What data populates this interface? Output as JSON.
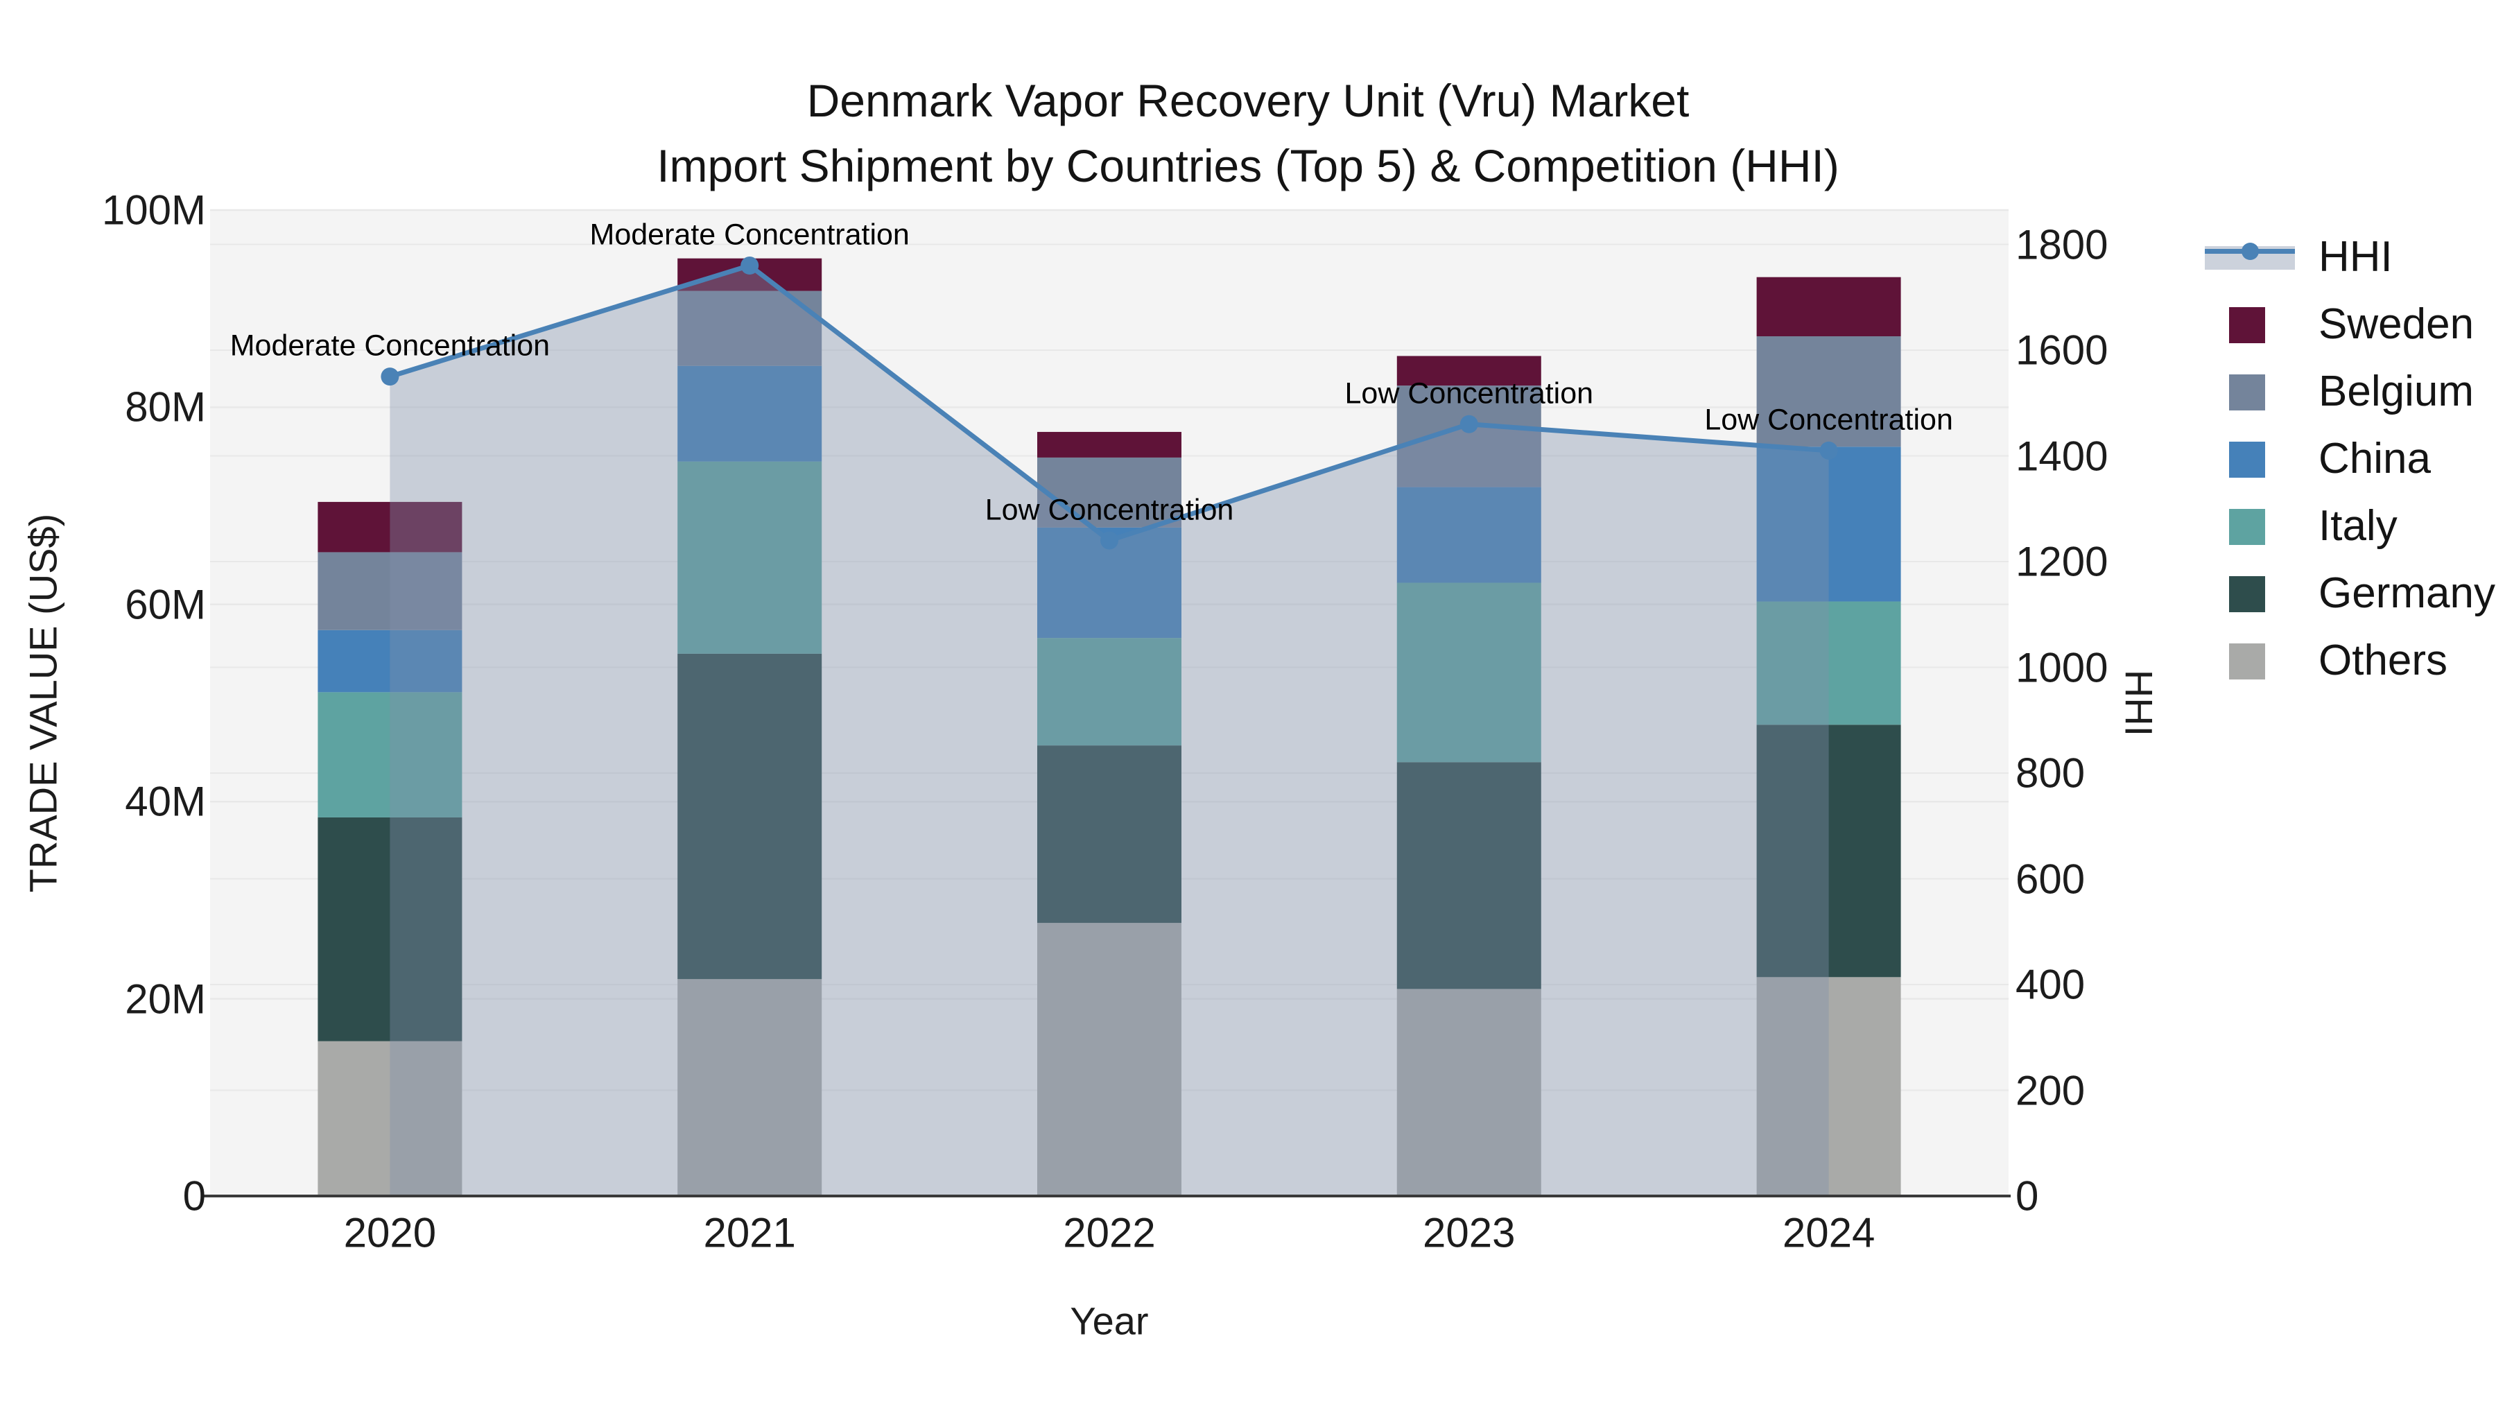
{
  "title": {
    "line1": "Denmark Vapor Recovery Unit (Vru) Market",
    "line2": "Import Shipment by Countries (Top 5) & Competition (HHI)"
  },
  "axes": {
    "x": {
      "title": "Year",
      "ticks": [
        "2020",
        "2021",
        "2022",
        "2023",
        "2024"
      ]
    },
    "y_left": {
      "title": "TRADE VALUE (US$)",
      "unit": "millions US$",
      "ticks": [
        "0",
        "20M",
        "40M",
        "60M",
        "80M",
        "100M"
      ],
      "range_millions": [
        0,
        100
      ]
    },
    "y_right": {
      "title": "HHI",
      "ticks": [
        "0",
        "200",
        "400",
        "600",
        "800",
        "1000",
        "1200",
        "1400",
        "1600",
        "1800"
      ]
    }
  },
  "legend": [
    {
      "label": "HHI",
      "type": "line",
      "color": "#4a82b6"
    },
    {
      "label": "Sweden",
      "type": "swatch",
      "color": "#5f1338"
    },
    {
      "label": "Belgium",
      "type": "swatch",
      "color": "#74849b"
    },
    {
      "label": "China",
      "type": "swatch",
      "color": "#4581b9"
    },
    {
      "label": "Italy",
      "type": "swatch",
      "color": "#5ea3a1"
    },
    {
      "label": "Germany",
      "type": "swatch",
      "color": "#2e4d4c"
    },
    {
      "label": "Others",
      "type": "swatch",
      "color": "#a9aaa8"
    }
  ],
  "chart_data": {
    "type": "bar+line",
    "title": "Denmark Vapor Recovery Unit (Vru) Market Import Shipment by Countries (Top 5) & Competition (HHI)",
    "xlabel": "Year",
    "ylabel_left": "TRADE VALUE (US$)",
    "ylabel_right": "HHI",
    "categories": [
      "2020",
      "2021",
      "2022",
      "2023",
      "2024"
    ],
    "stack_order_bottom_to_top": [
      "Others",
      "Germany",
      "Italy",
      "China",
      "Belgium",
      "Sweden"
    ],
    "series": [
      {
        "name": "Others",
        "color": "#a9aaa8",
        "values_millions": [
          15.7,
          22.0,
          27.7,
          21.0,
          22.2
        ]
      },
      {
        "name": "Germany",
        "color": "#2e4d4c",
        "values_millions": [
          22.7,
          33.0,
          18.0,
          23.0,
          25.6
        ]
      },
      {
        "name": "Italy",
        "color": "#5ea3a1",
        "values_millions": [
          12.7,
          19.5,
          10.9,
          18.2,
          12.5
        ]
      },
      {
        "name": "China",
        "color": "#4581b9",
        "values_millions": [
          6.3,
          9.7,
          11.2,
          9.7,
          15.7
        ]
      },
      {
        "name": "Belgium",
        "color": "#74849b",
        "values_millions": [
          7.9,
          7.6,
          7.1,
          10.3,
          11.2
        ]
      },
      {
        "name": "Sweden",
        "color": "#5f1338",
        "values_millions": [
          5.1,
          3.3,
          2.6,
          3.0,
          6.0
        ]
      }
    ],
    "bar_totals_millions": [
      70.4,
      95.1,
      77.5,
      85.2,
      93.2
    ],
    "hhi": {
      "name": "HHI",
      "axis": "right",
      "line_color": "#4a82b6",
      "area_fill": "rgba(130,145,170,0.38)",
      "values": [
        1550,
        1760,
        1240,
        1460,
        1410
      ]
    },
    "annotations": [
      {
        "category": "2020",
        "text": "Moderate Concentration"
      },
      {
        "category": "2021",
        "text": "Moderate Concentration"
      },
      {
        "category": "2022",
        "text": "Low Concentration"
      },
      {
        "category": "2023",
        "text": "Low Concentration"
      },
      {
        "category": "2024",
        "text": "Low Concentration"
      }
    ],
    "ylim_left_millions": [
      0,
      100
    ],
    "ylim_right": [
      0,
      1865
    ],
    "grid": true,
    "legend_position": "right"
  },
  "colors": {
    "plot_background": "#f4f4f4",
    "page_background": "#ffffff",
    "gridline": "#e8e8e8",
    "axis_line": "#3a3a3a",
    "text": "#141414"
  }
}
